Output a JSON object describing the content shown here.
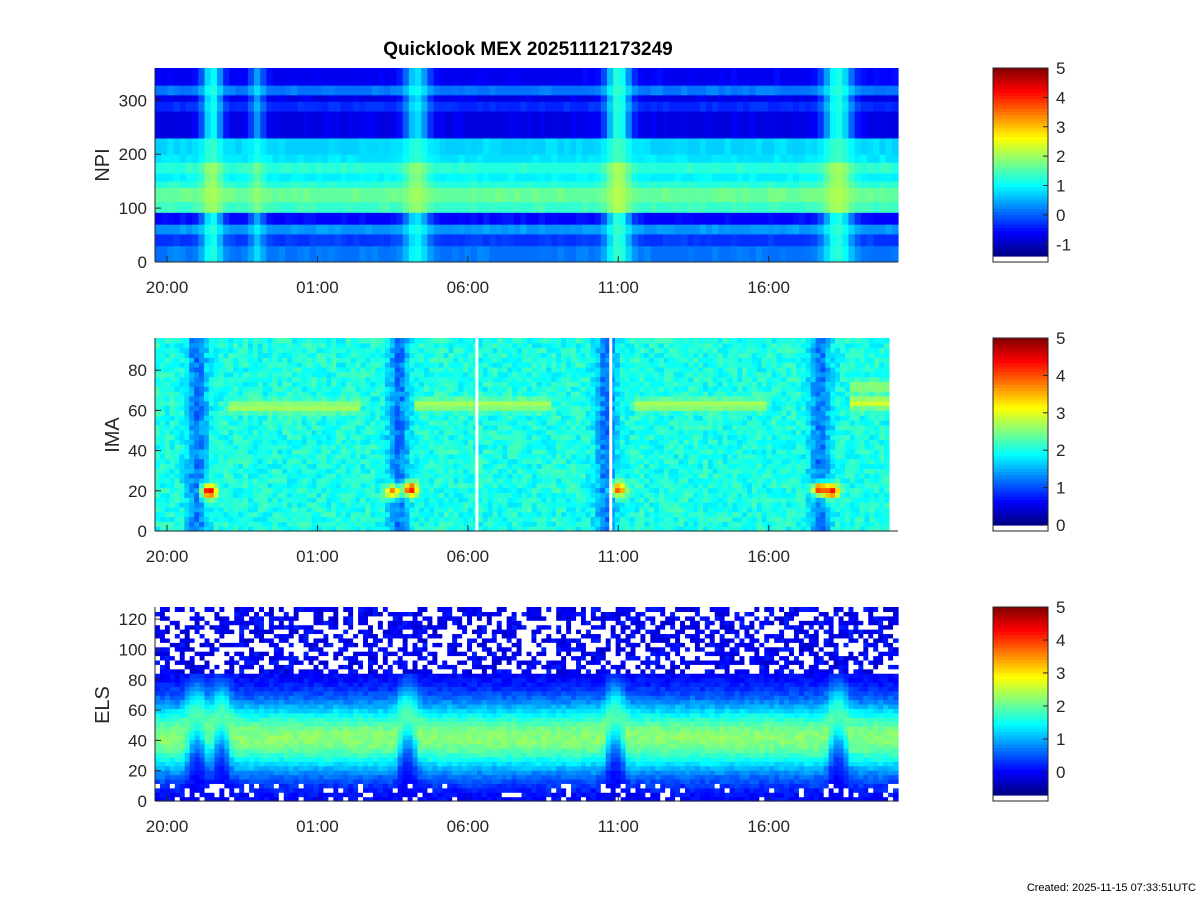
{
  "figure": {
    "title": "Quicklook MEX 20251112173249",
    "footer": "Created: 2025-11-15 07:33:51UTC"
  },
  "colormap": [
    "#00007f",
    "#0000ff",
    "#007fff",
    "#00ffff",
    "#7fff7f",
    "#ffff00",
    "#ff7f00",
    "#ff0000",
    "#7f0000"
  ],
  "chart_data": [
    {
      "type": "heatmap",
      "id": "npi",
      "ylabel": "NPI",
      "x_ticks": [
        "20:00",
        "01:00",
        "06:00",
        "11:00",
        "16:00"
      ],
      "x_tick_hours": [
        20,
        25,
        30,
        35,
        40
      ],
      "x_range_hours": [
        19.6,
        44.3
      ],
      "ylim": [
        0,
        360
      ],
      "y_ticks": [
        0,
        100,
        200,
        300
      ],
      "colorbar": {
        "ticks": [
          -1,
          0,
          1,
          2,
          3,
          4,
          5
        ],
        "range": [
          -1.4,
          5
        ]
      },
      "bands": [
        {
          "y": [
            0,
            30
          ],
          "level": 0.1
        },
        {
          "y": [
            30,
            52
          ],
          "level": -0.3
        },
        {
          "y": [
            52,
            70
          ],
          "level": 0.3
        },
        {
          "y": [
            70,
            92
          ],
          "level": -0.6
        },
        {
          "y": [
            92,
            112
          ],
          "level": 1.3
        },
        {
          "y": [
            112,
            138
          ],
          "level": 1.6
        },
        {
          "y": [
            138,
            150
          ],
          "level": 1.2
        },
        {
          "y": [
            150,
            165
          ],
          "level": 0.9
        },
        {
          "y": [
            165,
            185
          ],
          "level": 1.2
        },
        {
          "y": [
            185,
            200
          ],
          "level": 0.8
        },
        {
          "y": [
            200,
            230
          ],
          "level": 0.7
        },
        {
          "y": [
            230,
            280
          ],
          "level": -0.8
        },
        {
          "y": [
            280,
            298
          ],
          "level": -0.4
        },
        {
          "y": [
            298,
            310
          ],
          "level": -0.8
        },
        {
          "y": [
            310,
            328
          ],
          "level": 0.1
        },
        {
          "y": [
            328,
            360
          ],
          "level": -0.7
        }
      ],
      "events": [
        {
          "t": 21.5,
          "width": 0.5,
          "level": 1.6
        },
        {
          "t": 23.0,
          "width": 0.35,
          "level": 1.0
        },
        {
          "t": 28.3,
          "width": 0.6,
          "level": 1.4
        },
        {
          "t": 35.0,
          "width": 0.6,
          "level": 1.8
        },
        {
          "t": 42.3,
          "width": 0.7,
          "level": 1.7
        }
      ]
    },
    {
      "type": "heatmap",
      "id": "ima",
      "ylabel": "IMA",
      "x_ticks": [
        "20:00",
        "01:00",
        "06:00",
        "11:00",
        "16:00"
      ],
      "x_tick_hours": [
        20,
        25,
        30,
        35,
        40
      ],
      "x_range_hours": [
        19.6,
        44.3
      ],
      "ylim": [
        0,
        96
      ],
      "y_ticks": [
        0,
        20,
        40,
        60,
        80
      ],
      "colorbar": {
        "ticks": [
          0,
          1,
          2,
          3,
          4,
          5
        ],
        "range": [
          0,
          5
        ]
      },
      "background_level": 2.0,
      "gaps_hours": [
        30.3,
        34.75
      ],
      "data_end_hours": 44.0,
      "ridge_segments": [
        {
          "t": [
            22.0,
            26.4
          ],
          "y": 62,
          "level": 2.7
        },
        {
          "t": [
            28.2,
            32.7
          ],
          "y": 63,
          "level": 2.7
        },
        {
          "t": [
            35.5,
            40.0
          ],
          "y": 63,
          "level": 2.7
        },
        {
          "t": [
            42.7,
            44.0
          ],
          "y": 64,
          "level": 2.9
        },
        {
          "t": [
            42.7,
            44.0
          ],
          "y": 72,
          "level": 2.6
        }
      ],
      "hot_spots": [
        {
          "t": 21.4,
          "y": 20,
          "level": 4.6
        },
        {
          "t": 27.5,
          "y": 20,
          "level": 3.8
        },
        {
          "t": 28.1,
          "y": 21,
          "level": 4.4
        },
        {
          "t": 35.0,
          "y": 21,
          "level": 4.0
        },
        {
          "t": 41.7,
          "y": 21,
          "level": 4.3
        },
        {
          "t": 42.1,
          "y": 20,
          "level": 4.4
        }
      ],
      "dark_columns_hours": [
        21.0,
        27.7,
        34.6,
        41.7
      ]
    },
    {
      "type": "heatmap",
      "id": "els",
      "ylabel": "ELS",
      "x_ticks": [
        "20:00",
        "01:00",
        "06:00",
        "11:00",
        "16:00"
      ],
      "x_tick_hours": [
        20,
        25,
        30,
        35,
        40
      ],
      "x_range_hours": [
        19.6,
        44.3
      ],
      "ylim": [
        0,
        128
      ],
      "y_ticks": [
        0,
        20,
        40,
        60,
        80,
        100,
        120
      ],
      "colorbar": {
        "ticks": [
          0,
          1,
          2,
          3,
          4,
          5
        ],
        "range": [
          -0.7,
          5
        ]
      },
      "noise_above": 85,
      "peak_y": 42,
      "peak_level": 2.3,
      "events_hours": [
        21.0,
        21.8,
        28.0,
        34.9,
        42.3
      ]
    }
  ]
}
